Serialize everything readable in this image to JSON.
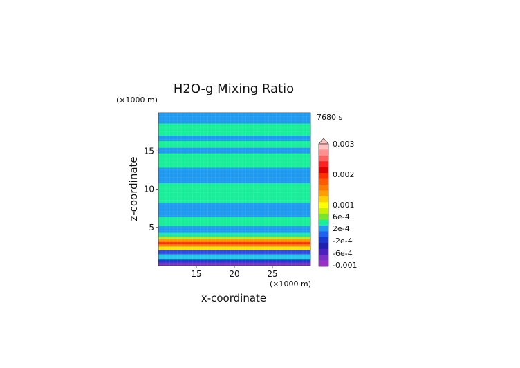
{
  "chart_data": {
    "type": "heatmap",
    "title": "H2O-g Mixing Ratio",
    "xlabel": "x-coordinate",
    "ylabel": "z-coordinate",
    "x_unit": "(×1000 m)",
    "y_unit": "(×1000 m)",
    "time_label": "7680 s",
    "xlim": [
      10,
      30
    ],
    "ylim": [
      0,
      20
    ],
    "x_ticks": [
      15,
      20,
      25
    ],
    "y_ticks": [
      5,
      10,
      15
    ],
    "grid": true,
    "bands": [
      {
        "z0": 0.0,
        "z1": 0.4,
        "color": "#7a2fc8"
      },
      {
        "z0": 0.4,
        "z1": 0.8,
        "color": "#1e3cd0"
      },
      {
        "z0": 0.8,
        "z1": 1.5,
        "color": "#22c8e8"
      },
      {
        "z0": 1.5,
        "z1": 2.0,
        "color": "#2a4ce0"
      },
      {
        "z0": 2.0,
        "z1": 2.5,
        "color": "#ffe000"
      },
      {
        "z0": 2.5,
        "z1": 2.8,
        "color": "#ff8c00"
      },
      {
        "z0": 2.8,
        "z1": 3.1,
        "color": "#ff3000"
      },
      {
        "z0": 3.1,
        "z1": 3.5,
        "color": "#ff9a00"
      },
      {
        "z0": 3.5,
        "z1": 3.8,
        "color": "#a8ec30"
      },
      {
        "z0": 3.8,
        "z1": 4.3,
        "color": "#1ce6b0"
      },
      {
        "z0": 4.3,
        "z1": 5.2,
        "color": "#1f9af0"
      },
      {
        "z0": 5.2,
        "z1": 6.4,
        "color": "#19ee9a"
      },
      {
        "z0": 6.4,
        "z1": 8.2,
        "color": "#1f9af0"
      },
      {
        "z0": 8.2,
        "z1": 10.8,
        "color": "#19ee9a"
      },
      {
        "z0": 10.8,
        "z1": 12.8,
        "color": "#1f9af0"
      },
      {
        "z0": 12.8,
        "z1": 14.7,
        "color": "#19ee9a"
      },
      {
        "z0": 14.7,
        "z1": 15.4,
        "color": "#1f9af0"
      },
      {
        "z0": 15.4,
        "z1": 16.3,
        "color": "#19ee9a"
      },
      {
        "z0": 16.3,
        "z1": 17.0,
        "color": "#1f9af0"
      },
      {
        "z0": 17.0,
        "z1": 18.6,
        "color": "#19ee9a"
      },
      {
        "z0": 18.6,
        "z1": 20.0,
        "color": "#1f9af0"
      }
    ],
    "colorbar": {
      "labels": [
        "0.003",
        "0.002",
        "0.001",
        "6e-4",
        "2e-4",
        "-2e-4",
        "-6e-4",
        "-0.001"
      ],
      "colors_top_to_bottom": [
        "#ffc0c0",
        "#ff9090",
        "#ff6060",
        "#ff2020",
        "#e00000",
        "#ff3000",
        "#ff5a00",
        "#ff7a00",
        "#ffa000",
        "#ffd000",
        "#ffff00",
        "#c8f000",
        "#7ae62a",
        "#19ee9a",
        "#1f9af0",
        "#2060f0",
        "#1a36d0",
        "#2020b0",
        "#4a20c0",
        "#7a2fc8",
        "#9a30c8"
      ]
    }
  }
}
